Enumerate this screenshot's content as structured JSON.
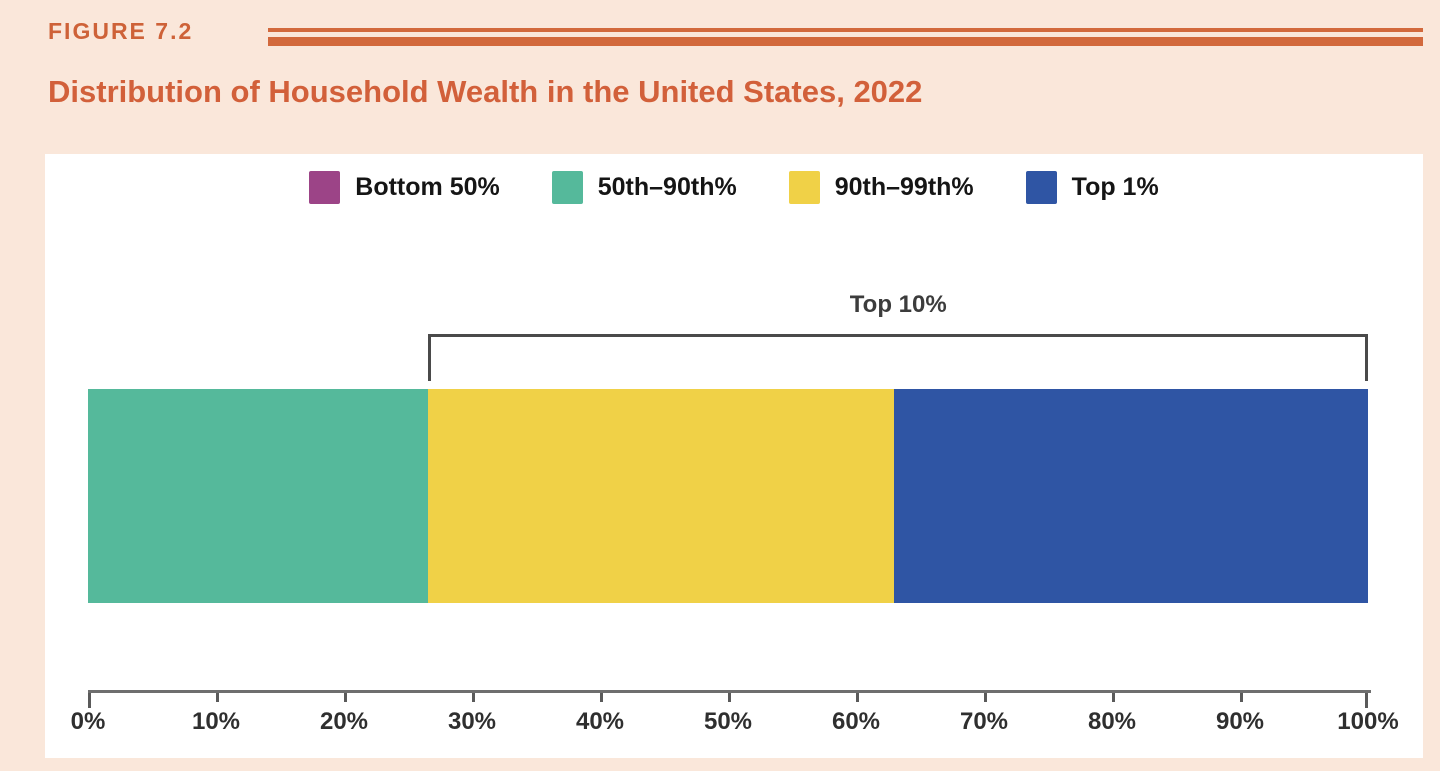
{
  "figure": {
    "label": "FIGURE 7.2",
    "title": "Distribution of Household Wealth in the United States, 2022"
  },
  "colors": {
    "page_background": "#FAE7DA",
    "accent_orange": "#D2603A",
    "panel_background": "#FFFFFF",
    "bracket_gray": "#4A4A4A",
    "axis_gray": "#6E6E6E",
    "text_dark": "#151515"
  },
  "chart_data": {
    "type": "bar",
    "subtype": "horizontal-stacked-single-bar",
    "title": "Distribution of Household Wealth in the United States, 2022",
    "xlabel": "",
    "ylabel": "",
    "x_range": [
      0,
      100
    ],
    "grid": false,
    "legend_position": "top-center",
    "segments": [
      {
        "label": "Bottom 50%",
        "color": "#9C4487",
        "value_pct": 0
      },
      {
        "label": "50th–90th%",
        "color": "#55B99B",
        "value_pct": 26.6
      },
      {
        "label": "90th–99th%",
        "color": "#F0D147",
        "value_pct": 36.4
      },
      {
        "label": "Top 1%",
        "color": "#2F55A4",
        "value_pct": 37.0
      }
    ],
    "annotation": {
      "label": "Top 10%",
      "from_pct": 26.6,
      "to_pct": 100
    },
    "x_axis": {
      "tick_labels": [
        "0%",
        "10%",
        "20%",
        "30%",
        "40%",
        "50%",
        "60%",
        "70%",
        "80%",
        "90%",
        "100%"
      ],
      "tick_values": [
        0,
        10,
        20,
        30,
        40,
        50,
        60,
        70,
        80,
        90,
        100
      ]
    }
  }
}
